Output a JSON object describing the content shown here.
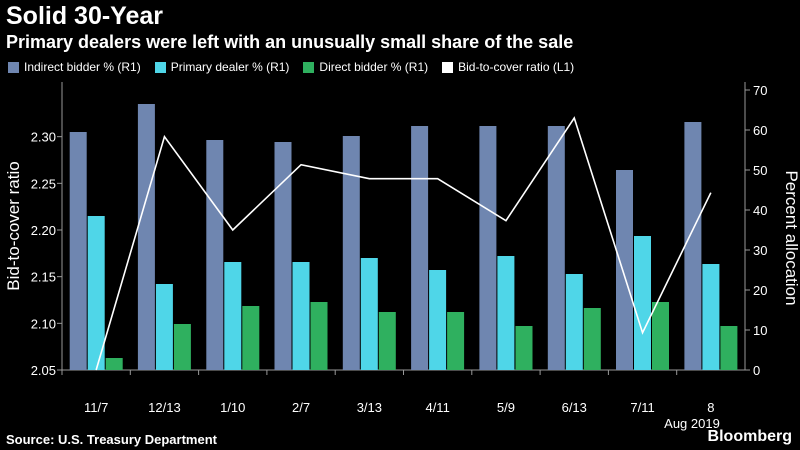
{
  "title": "Solid 30-Year",
  "subtitle": "Primary dealers were left with an unusually small share of the sale",
  "source": "Source: U.S. Treasury Department",
  "brand": "Bloomberg",
  "colors": {
    "indirect": "#6f86b0",
    "primary": "#4fd6e8",
    "direct": "#2fb05f",
    "line": "#ffffff",
    "background": "#000000"
  },
  "chart_data": {
    "type": "bar+line",
    "categories": [
      "11/7",
      "12/13",
      "1/10",
      "2/7",
      "3/13",
      "4/11",
      "5/9",
      "6/13",
      "7/11",
      "8"
    ],
    "year_note": "Aug 2019",
    "series": [
      {
        "name": "Indirect bidder % (R1)",
        "axis": "right",
        "type": "bar",
        "values": [
          59.5,
          66.5,
          57.5,
          57,
          58.5,
          61,
          61,
          61,
          50,
          62
        ]
      },
      {
        "name": "Primary dealer % (R1)",
        "axis": "right",
        "type": "bar",
        "values": [
          38.5,
          21.5,
          27,
          27,
          28,
          25,
          28.5,
          24,
          33.5,
          26.5
        ]
      },
      {
        "name": "Direct bidder % (R1)",
        "axis": "right",
        "type": "bar",
        "values": [
          3,
          11.5,
          16,
          17,
          14.5,
          14.5,
          11,
          15.5,
          17,
          11
        ]
      },
      {
        "name": "Bid-to-cover ratio (L1)",
        "axis": "left",
        "type": "line",
        "values": [
          2.05,
          2.3,
          2.2,
          2.27,
          2.255,
          2.255,
          2.21,
          2.32,
          2.09,
          2.24
        ]
      }
    ],
    "left_axis": {
      "label": "Bid-to-cover ratio",
      "min": 2.05,
      "max": 2.35,
      "ticks": [
        "2.05",
        "2.10",
        "2.15",
        "2.20",
        "2.25",
        "2.30"
      ]
    },
    "right_axis": {
      "label": "Percent allocation",
      "min": 0,
      "max": 70,
      "ticks": [
        "0",
        "10",
        "20",
        "30",
        "40",
        "50",
        "60",
        "70"
      ]
    },
    "grid": false,
    "legend_position": "top-left"
  }
}
